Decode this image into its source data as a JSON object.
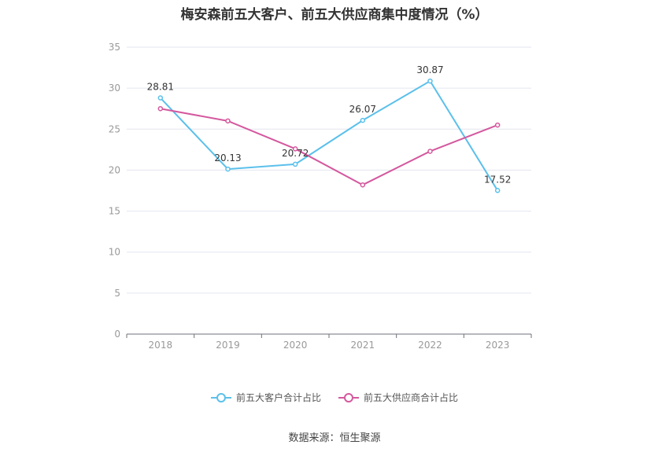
{
  "title": "梅安森前五大客户、前五大供应商集中度情况（%）",
  "source": "数据来源：恒生聚源",
  "chart_data": {
    "type": "line",
    "title": "梅安森前五大客户、前五大供应商集中度情况（%）",
    "categories": [
      "2018",
      "2019",
      "2020",
      "2021",
      "2022",
      "2023"
    ],
    "ylim": [
      0,
      35
    ],
    "yticks": [
      0,
      5,
      10,
      15,
      20,
      25,
      30,
      35
    ],
    "grid": true,
    "legend": "bottom",
    "series": [
      {
        "name": "前五大客户合计占比",
        "color": "#5bc0eb",
        "values": [
          28.81,
          20.13,
          20.72,
          26.07,
          30.87,
          17.52
        ],
        "labels": [
          "28.81",
          "20.13",
          "20.72",
          "26.07",
          "30.87",
          "17.52"
        ]
      },
      {
        "name": "前五大供应商合计占比",
        "color": "#d4589e",
        "values": [
          27.5,
          26.0,
          22.6,
          18.2,
          22.3,
          25.5
        ],
        "labels": []
      }
    ]
  }
}
